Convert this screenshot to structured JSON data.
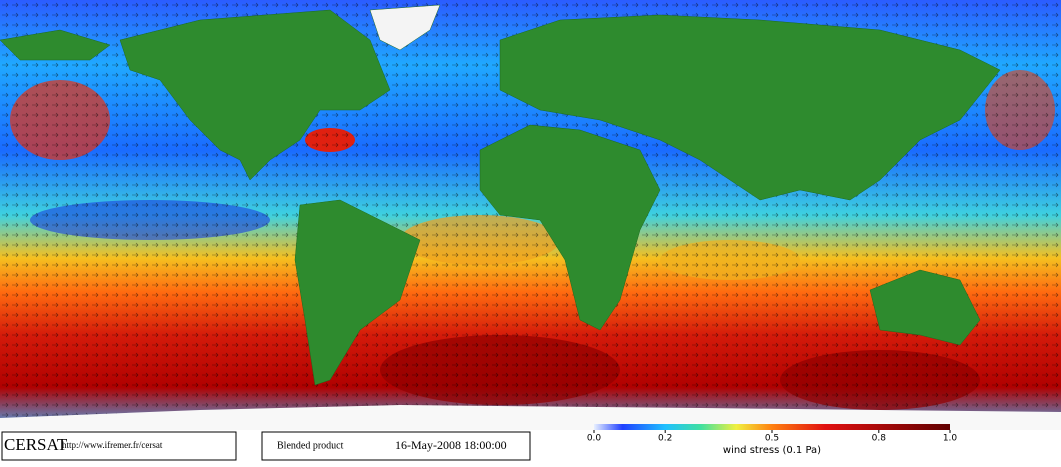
{
  "footer": {
    "logo": "CERSAT",
    "url": "http://www.ifremer.fr/cersat",
    "product": "Blended product",
    "datetime": "16-May-2008 18:00:00"
  },
  "colorbar": {
    "range": [
      0,
      1
    ],
    "ticks": [
      {
        "value": 0,
        "label": "0.0"
      },
      {
        "value": 0.2,
        "label": "0.2"
      },
      {
        "value": 0.5,
        "label": "0.5"
      },
      {
        "value": 0.8,
        "label": "0.8"
      },
      {
        "value": 1,
        "label": "1.0"
      }
    ],
    "label": "wind stress (0.1 Pa)"
  }
}
